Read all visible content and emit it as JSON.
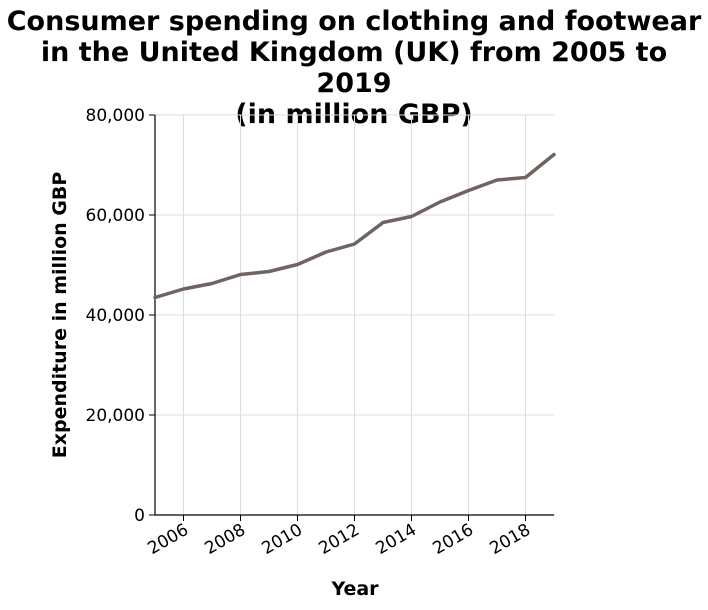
{
  "chart_data": {
    "type": "line",
    "title": "Consumer spending on clothing and footwear in the United Kingdom (UK) from 2005 to 2019 (in million GBP)",
    "title_lines": [
      "Consumer spending on clothing and footwear",
      "in the United Kingdom (UK) from 2005 to 2019",
      "(in million GBP)"
    ],
    "xlabel": "Year",
    "ylabel": "Expenditure in million GBP",
    "x": [
      2005,
      2006,
      2007,
      2008,
      2009,
      2010,
      2011,
      2012,
      2013,
      2014,
      2015,
      2016,
      2017,
      2018,
      2019
    ],
    "series": [
      {
        "values": [
          43500,
          45200,
          46300,
          48100,
          48700,
          50100,
          52600,
          54200,
          58500,
          59700,
          62600,
          64900,
          67000,
          67500,
          72100
        ],
        "color": "#6f6460"
      }
    ],
    "xlim": [
      2005,
      2019
    ],
    "ylim": [
      0,
      80000
    ],
    "x_ticks": [
      2006,
      2008,
      2010,
      2012,
      2014,
      2016,
      2018
    ],
    "x_tick_labels": [
      "2006",
      "2008",
      "2010",
      "2012",
      "2014",
      "2016",
      "2018"
    ],
    "y_ticks": [
      0,
      20000,
      40000,
      60000,
      80000
    ],
    "y_tick_labels": [
      "0",
      "20,000",
      "40,000",
      "60,000",
      "80,000"
    ],
    "grid": true,
    "grid_color": "#dddddd",
    "axis_color": "#000000"
  }
}
